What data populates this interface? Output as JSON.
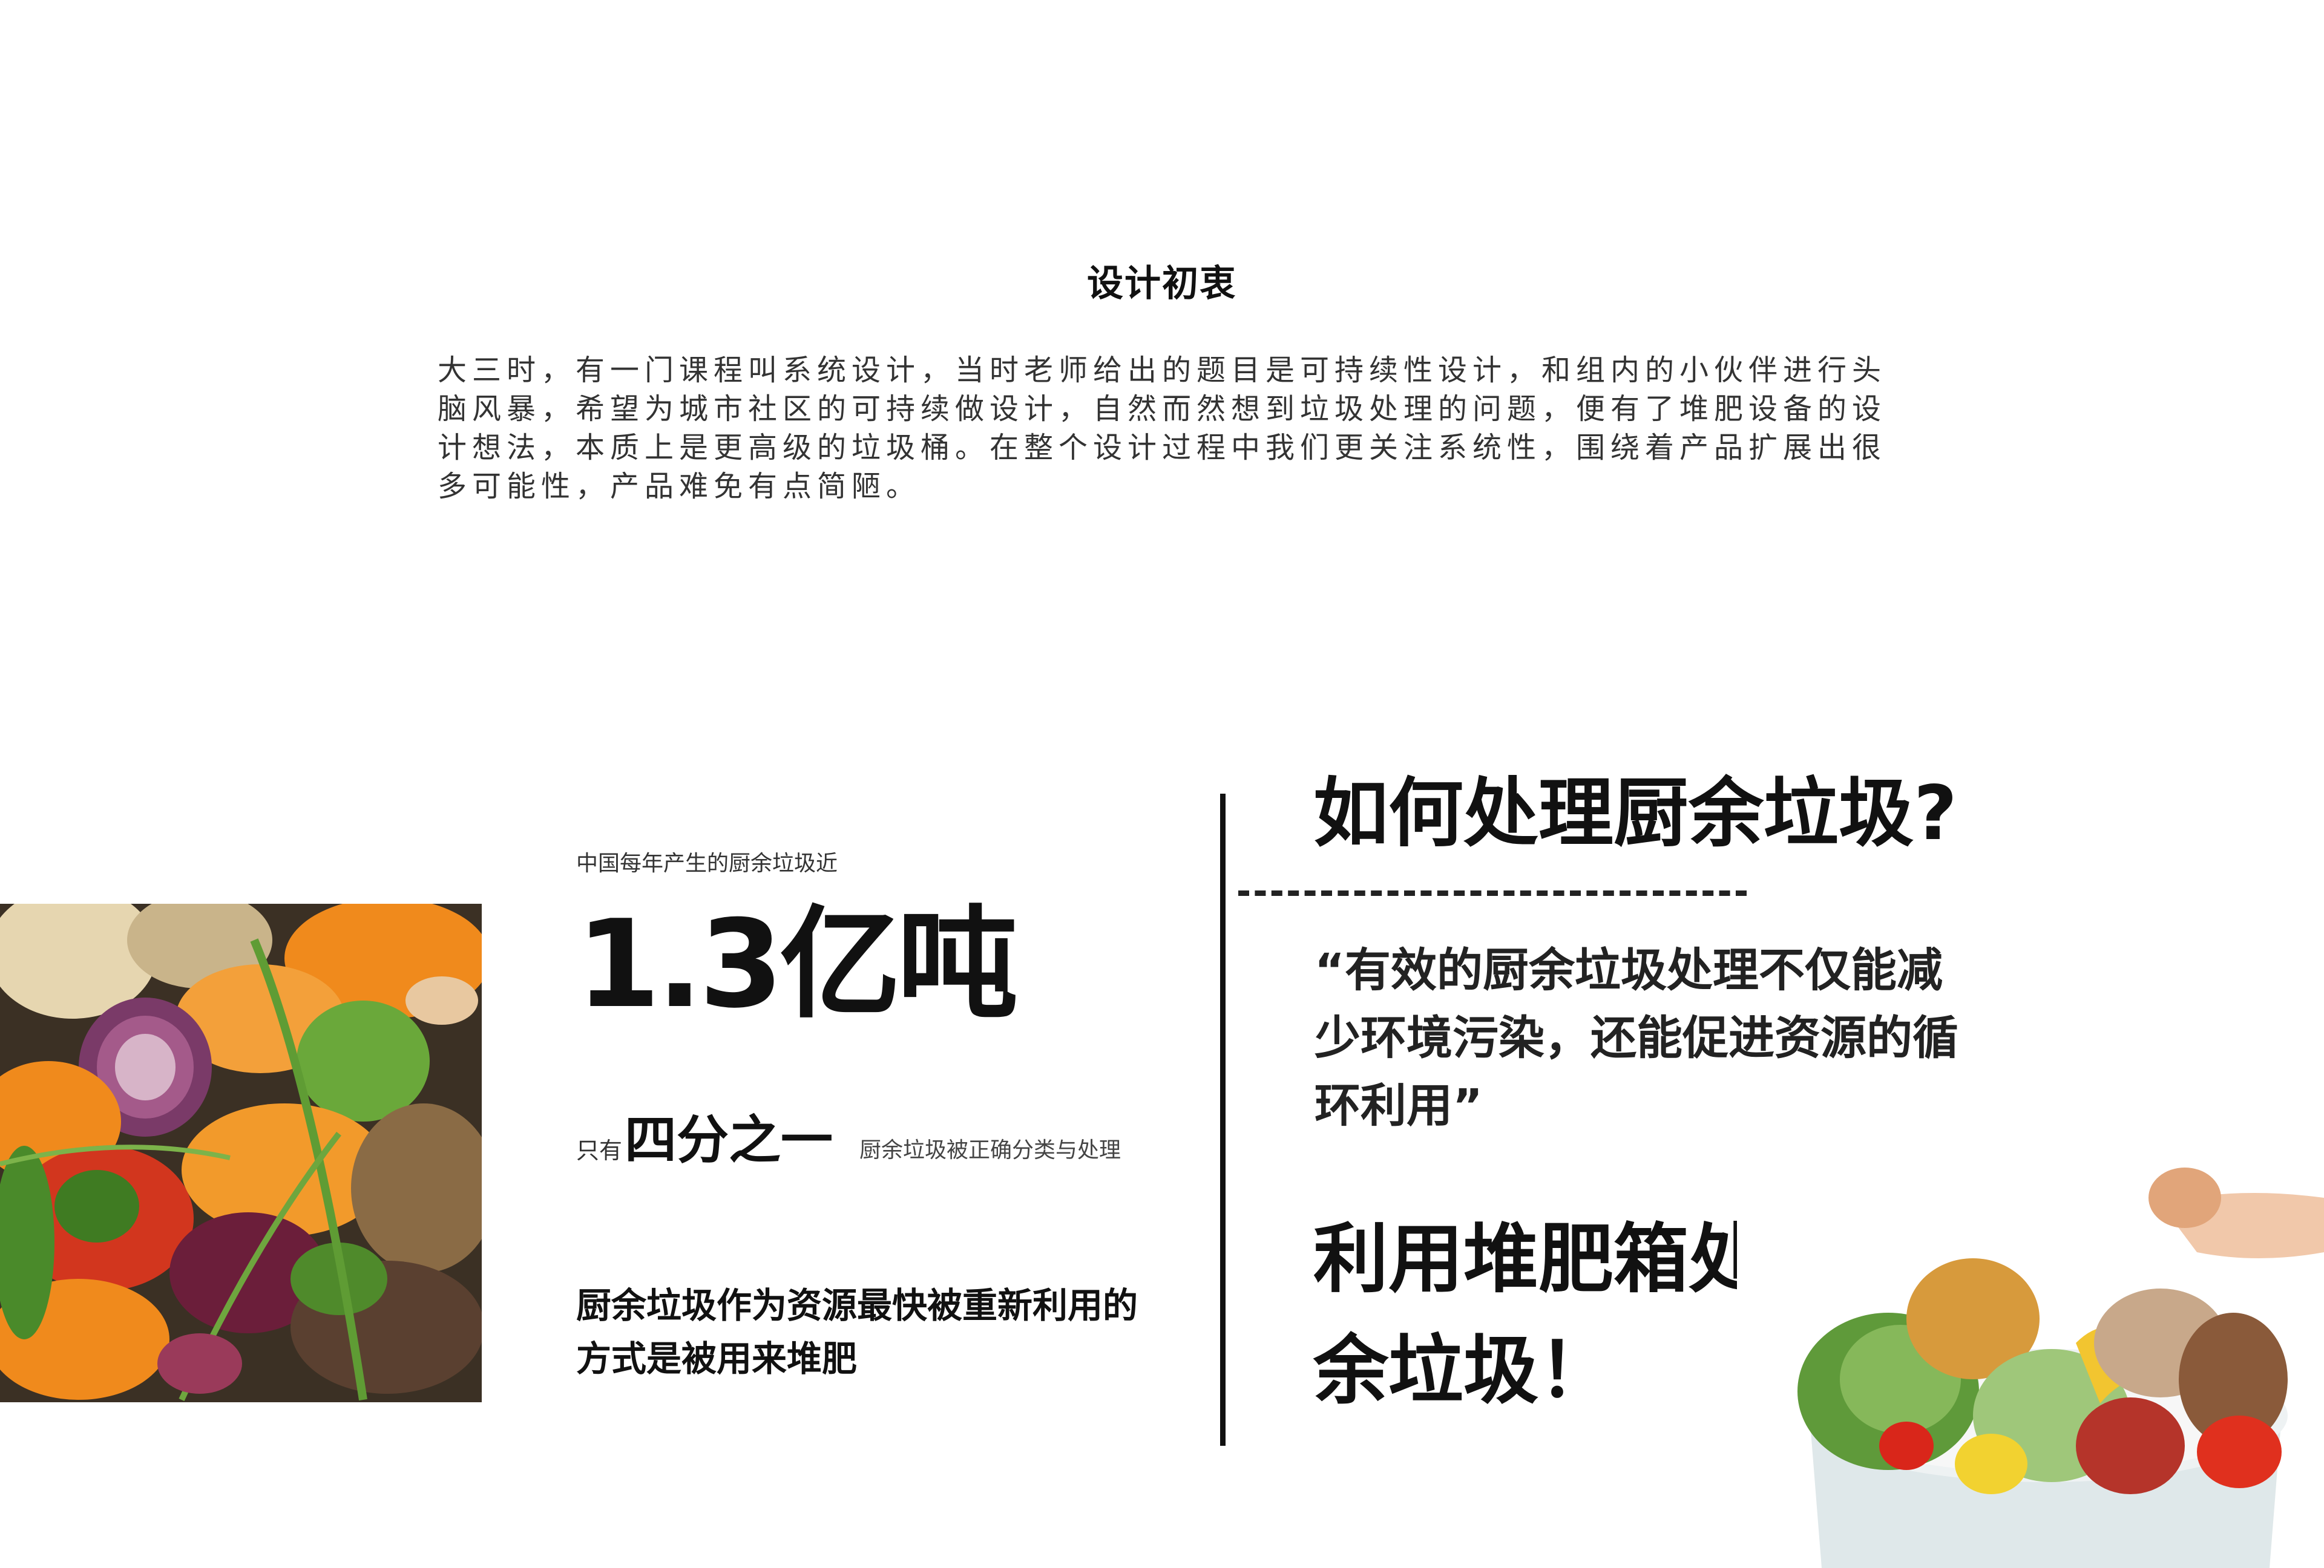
{
  "intro": {
    "title": "设计初衷",
    "body": "大三时，有一门课程叫系统设计，当时老师给出的题目是可持续性设计，和组内的小伙伴进行头脑风暴，希望为城市社区的可持续做设计，自然而然想到垃圾处理的问题，便有了堆肥设备的设计想法，本质上是更高级的垃圾桶。在整个设计过程中我们更关注系统性，围绕着产品扩展出很多可能性，产品难免有点简陋。"
  },
  "stats": {
    "caption": "中国每年产生的厨余垃圾近",
    "big_value": "1.3亿吨",
    "quarter_prefix": "只有",
    "quarter_big": "四分之一",
    "quarter_suffix": "厨余垃圾被正确分类与处理",
    "compost_note": "厨余垃圾作为资源最快被重新利用的方式是被用来堆肥"
  },
  "right": {
    "question": "如何处理厨余垃圾?",
    "quote": "“有效的厨余垃圾处理不仅能减少环境污染，还能促进资源的循环利用”",
    "answer": "利用堆肥箱处理厨余垃圾！"
  },
  "images": {
    "food_photo": "food-scraps-photo",
    "bin_photo": "compost-bin-photo"
  },
  "colors": {
    "text": "#111111",
    "orange_peel": "#f08a1c",
    "leaf_green": "#4f8a2b",
    "onion_purple": "#7a3a68"
  }
}
